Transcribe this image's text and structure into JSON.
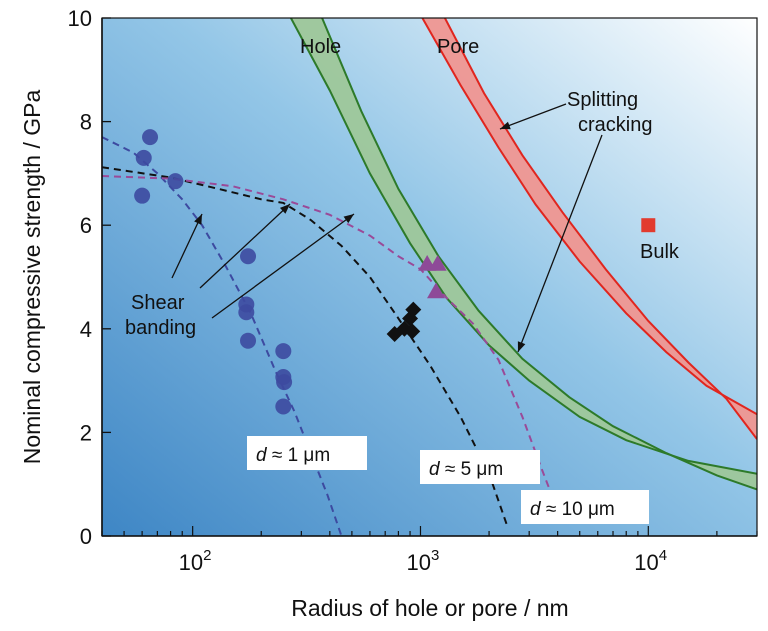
{
  "chart_data": {
    "type": "scatter",
    "xscale": "log",
    "xlim": [
      40,
      30000
    ],
    "ylim": [
      0,
      10
    ],
    "xlabel": "Radius of hole or pore / nm",
    "ylabel": "Nominal compressive strength / GPa",
    "y_ticks": [
      0,
      2,
      4,
      6,
      8,
      10
    ],
    "x_ticks": [
      {
        "value": 100,
        "base": "10",
        "exp": "2"
      },
      {
        "value": 1000,
        "base": "10",
        "exp": "3"
      },
      {
        "value": 10000,
        "base": "10",
        "exp": "4"
      }
    ],
    "series": [
      {
        "name": "d ≈ 1 μm",
        "marker": "circle",
        "color": "#3d4aa0",
        "points": [
          [
            65,
            7.7
          ],
          [
            61,
            7.3
          ],
          [
            60,
            6.57
          ],
          [
            84,
            6.85
          ],
          [
            175,
            5.4
          ],
          [
            172,
            4.47
          ],
          [
            172,
            4.32
          ],
          [
            175,
            3.77
          ],
          [
            250,
            3.57
          ],
          [
            250,
            3.07
          ],
          [
            252,
            2.97
          ],
          [
            250,
            2.5
          ]
        ]
      },
      {
        "name": "d ≈ 5 μm",
        "marker": "diamond",
        "color": "#111111",
        "points": [
          [
            770,
            3.9
          ],
          [
            850,
            4.0
          ],
          [
            930,
            4.37
          ],
          [
            900,
            4.2
          ],
          [
            920,
            3.95
          ]
        ]
      },
      {
        "name": "d ≈ 10 μm",
        "marker": "triangle",
        "color": "#8e4a98",
        "points": [
          [
            1070,
            5.25
          ],
          [
            1190,
            5.25
          ],
          [
            1170,
            4.72
          ]
        ]
      },
      {
        "name": "Bulk",
        "marker": "square",
        "color": "#e23b2f",
        "points": [
          [
            10000,
            6.0
          ]
        ]
      }
    ],
    "fit_curves": [
      {
        "label": "d ≈ 1 μm",
        "color": "#3d4aa0",
        "points": [
          [
            40,
            7.7
          ],
          [
            55,
            7.4
          ],
          [
            70,
            7.0
          ],
          [
            90,
            6.5
          ],
          [
            110,
            6.0
          ],
          [
            140,
            5.2
          ],
          [
            180,
            4.3
          ],
          [
            230,
            3.2
          ],
          [
            280,
            2.4
          ],
          [
            330,
            1.6
          ],
          [
            390,
            0.8
          ],
          [
            450,
            0.0
          ]
        ]
      },
      {
        "label": "d ≈ 5 μm",
        "color": "#111111",
        "points": [
          [
            40,
            7.12
          ],
          [
            80,
            6.92
          ],
          [
            130,
            6.7
          ],
          [
            200,
            6.5
          ],
          [
            250,
            6.43
          ],
          [
            330,
            6.1
          ],
          [
            450,
            5.6
          ],
          [
            600,
            5.0
          ],
          [
            800,
            4.2
          ],
          [
            1100,
            3.3
          ],
          [
            1500,
            2.3
          ],
          [
            2000,
            1.2
          ],
          [
            2400,
            0.2
          ]
        ]
      },
      {
        "label": "d ≈ 10 μm",
        "color": "#9a4a98",
        "points": [
          [
            40,
            6.95
          ],
          [
            80,
            6.9
          ],
          [
            150,
            6.75
          ],
          [
            250,
            6.5
          ],
          [
            400,
            6.2
          ],
          [
            600,
            5.8
          ],
          [
            800,
            5.4
          ],
          [
            1000,
            5.15
          ],
          [
            1300,
            4.6
          ],
          [
            1700,
            4.1
          ],
          [
            2200,
            3.4
          ],
          [
            2800,
            2.3
          ],
          [
            3400,
            1.3
          ],
          [
            4000,
            0.5
          ]
        ]
      }
    ],
    "bands": [
      {
        "label": "Hole",
        "fill": "#9ec79a",
        "stroke": "#2d7a2a",
        "upper": [
          [
            270,
            10.0
          ],
          [
            400,
            8.6
          ],
          [
            600,
            7.0
          ],
          [
            900,
            5.65
          ],
          [
            1300,
            4.6
          ],
          [
            2000,
            3.68
          ],
          [
            3000,
            3.0
          ],
          [
            5000,
            2.3
          ],
          [
            8000,
            1.85
          ],
          [
            15000,
            1.45
          ],
          [
            30000,
            1.2
          ]
        ],
        "lower": [
          [
            370,
            10.0
          ],
          [
            550,
            8.2
          ],
          [
            800,
            6.7
          ],
          [
            1200,
            5.4
          ],
          [
            1800,
            4.35
          ],
          [
            2800,
            3.42
          ],
          [
            4500,
            2.68
          ],
          [
            7000,
            2.12
          ],
          [
            12000,
            1.6
          ],
          [
            20000,
            1.17
          ],
          [
            30000,
            0.9
          ]
        ]
      },
      {
        "label": "Pore",
        "fill": "#ef9691",
        "stroke": "#e0261f",
        "upper": [
          [
            1020,
            10.0
          ],
          [
            1500,
            8.7
          ],
          [
            2200,
            7.5
          ],
          [
            3200,
            6.4
          ],
          [
            5000,
            5.3
          ],
          [
            8000,
            4.3
          ],
          [
            12000,
            3.55
          ],
          [
            18000,
            2.9
          ],
          [
            30000,
            2.35
          ]
        ],
        "lower": [
          [
            1280,
            10.0
          ],
          [
            1900,
            8.55
          ],
          [
            2800,
            7.35
          ],
          [
            4200,
            6.25
          ],
          [
            6500,
            5.15
          ],
          [
            10000,
            4.15
          ],
          [
            15000,
            3.35
          ],
          [
            22000,
            2.65
          ],
          [
            30000,
            1.87
          ]
        ]
      }
    ],
    "annotations": {
      "hole": "Hole",
      "pore": "Pore",
      "splitting_line1": "Splitting",
      "splitting_line2": "cracking",
      "shear_line1": "Shear",
      "shear_line2": "banding",
      "bulk": "Bulk"
    },
    "curve_labels": [
      {
        "italic": "d",
        "rest": " ≈ 1 μm"
      },
      {
        "italic": "d",
        "rest": " ≈ 5 μm"
      },
      {
        "italic": "d",
        "rest": " ≈ 10 μm"
      }
    ],
    "colors": {
      "bg_dark": "#3f8bc9",
      "bg_mid": "#8ec2e6",
      "bg_light": "#ffffff",
      "axis": "#111111"
    }
  }
}
